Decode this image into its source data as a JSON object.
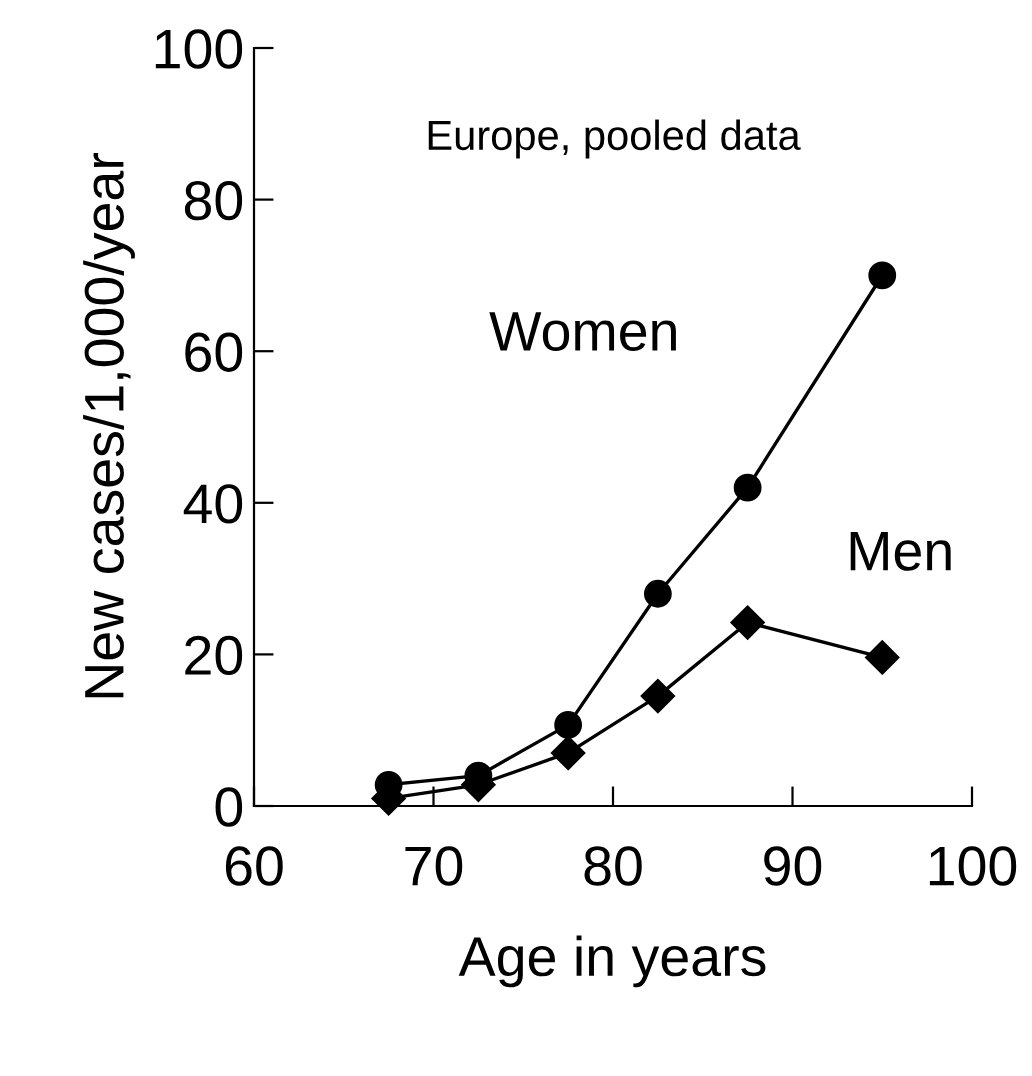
{
  "chart_data": {
    "type": "line",
    "xlabel": "Age in years",
    "ylabel": "New cases/1,000/year",
    "xlim": [
      60,
      100
    ],
    "xticks": [
      60,
      70,
      80,
      90,
      100
    ],
    "ylim": [
      0,
      100
    ],
    "yticks": [
      0,
      20,
      40,
      60,
      80,
      100
    ],
    "grid": false,
    "legend": false,
    "annotations": [
      {
        "text": "Europe, pooled data"
      }
    ],
    "series": [
      {
        "name": "Women",
        "color": "#000000",
        "marker": "circle",
        "x": [
          67.5,
          72.5,
          77.5,
          82.5,
          87.5,
          95
        ],
        "values": [
          2.8,
          4,
          10.7,
          28,
          42,
          70
        ]
      },
      {
        "name": "Men",
        "color": "#000000",
        "marker": "diamond",
        "x": [
          67.5,
          72.5,
          77.5,
          82.5,
          87.5,
          95
        ],
        "values": [
          1,
          2.8,
          7,
          14.5,
          24.2,
          19.6
        ]
      }
    ]
  }
}
